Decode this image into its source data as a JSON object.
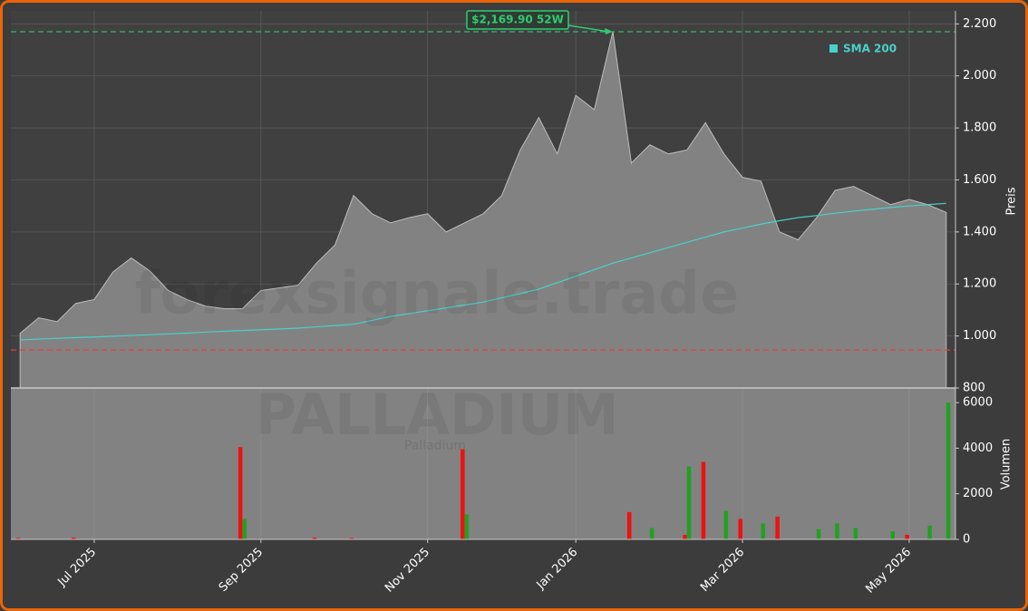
{
  "chart_data": {
    "type": "area",
    "title": "PALLADIUM",
    "subtitle": "Palladium",
    "watermark": "forexsignale.trade",
    "y_label": "Preis",
    "categories": [
      null,
      null,
      null,
      null,
      "Jul 2025",
      null,
      null,
      null,
      null,
      null,
      null,
      null,
      null,
      "Sep 2025",
      null,
      null,
      null,
      null,
      null,
      null,
      null,
      null,
      "Nov 2025",
      null,
      null,
      null,
      null,
      null,
      null,
      null,
      "Jan 2026",
      null,
      null,
      null,
      null,
      null,
      null,
      null,
      null,
      "Mar 2026",
      null,
      null,
      null,
      null,
      null,
      null,
      null,
      null,
      "May 2026",
      null,
      null
    ],
    "series": [
      {
        "type": "area",
        "color": "#828282",
        "values": [
          1010,
          1070,
          1055,
          1125,
          1140,
          1245,
          1300,
          1250,
          1175,
          1140,
          1115,
          1105,
          1105,
          1175,
          1185,
          1195,
          1280,
          1350,
          1540,
          1470,
          1435,
          1455,
          1470,
          1400,
          1435,
          1470,
          1540,
          1715,
          1840,
          1700,
          1925,
          1870,
          2170,
          1665,
          1735,
          1700,
          1715,
          1820,
          1700,
          1610,
          1595,
          1400,
          1370,
          1455,
          1560,
          1575,
          1540,
          1505,
          1525,
          1505,
          1475
        ]
      },
      {
        "type": "line",
        "name": "SMA 200",
        "color": "#48d1cc",
        "values": [
          985,
          988,
          991,
          994,
          996,
          999,
          1002,
          1005,
          1008,
          1011,
          1015,
          1018,
          1021,
          1024,
          1027,
          1030,
          1035,
          1040,
          1045,
          1060,
          1075,
          1086,
          1097,
          1108,
          1119,
          1130,
          1147,
          1163,
          1180,
          1205,
          1230,
          1255,
          1280,
          1300,
          1320,
          1340,
          1360,
          1380,
          1400,
          1415,
          1430,
          1443,
          1455,
          1463,
          1472,
          1480,
          1487,
          1494,
          1500,
          1505,
          1510
        ]
      }
    ],
    "ylim": [
      800,
      2250
    ],
    "yticks": [
      800,
      {
        "value": 1000,
        "label": "1.000"
      },
      {
        "value": 1200,
        "label": "1.200"
      },
      {
        "value": 1400,
        "label": "1.400"
      },
      {
        "value": 1600,
        "label": "1.600"
      },
      {
        "value": 1800,
        "label": "1.800"
      },
      {
        "value": 2000,
        "label": "2.000"
      },
      {
        "value": 2200,
        "label": "2.200"
      }
    ],
    "grid": true,
    "annotation": {
      "text": "$2,169.90 52W",
      "color": "#2ecc71"
    },
    "reference_lines": [
      {
        "value": 2169.9,
        "color": "#3cb371"
      },
      {
        "value": 946,
        "color": "#e04040"
      }
    ],
    "volume": {
      "type": "bar",
      "y_label": "Volumen",
      "ylim": [
        0,
        6640
      ],
      "yticks": [
        0,
        2000,
        4000,
        6000
      ],
      "series": [
        {
          "color": "#ee1111",
          "values": [
            60,
            null,
            null,
            80,
            null,
            null,
            null,
            null,
            null,
            null,
            null,
            null,
            4050,
            null,
            null,
            null,
            80,
            null,
            60,
            null,
            null,
            null,
            null,
            null,
            3950,
            null,
            null,
            null,
            null,
            null,
            null,
            null,
            null,
            1200,
            null,
            null,
            200,
            3400,
            null,
            900,
            null,
            1000,
            null,
            null,
            null,
            null,
            null,
            null,
            200,
            null,
            null
          ]
        },
        {
          "color": "#22a022",
          "values": [
            null,
            null,
            null,
            null,
            null,
            null,
            null,
            null,
            null,
            null,
            null,
            null,
            900,
            null,
            null,
            null,
            null,
            null,
            null,
            null,
            null,
            null,
            null,
            null,
            1100,
            null,
            null,
            null,
            null,
            null,
            null,
            null,
            null,
            null,
            500,
            null,
            3200,
            null,
            1250,
            null,
            700,
            null,
            null,
            450,
            700,
            500,
            null,
            350,
            null,
            600,
            6000
          ]
        }
      ]
    }
  }
}
